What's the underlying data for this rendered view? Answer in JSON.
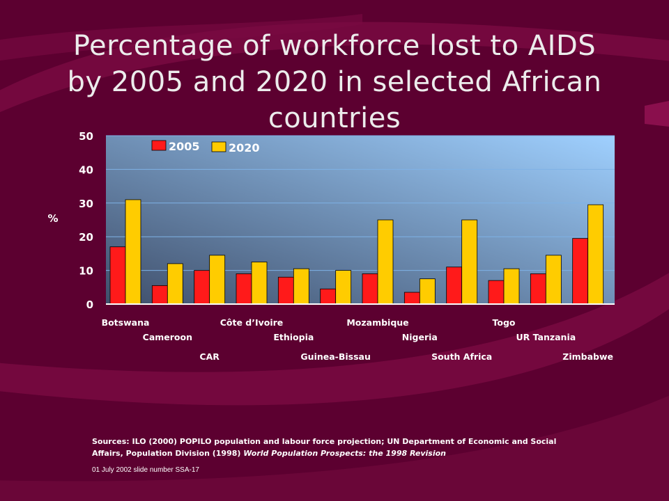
{
  "slide": {
    "title_lines": [
      "Percentage of workforce lost to AIDS",
      "by 2005 and 2020 in selected African",
      "countries"
    ],
    "sources_text": "Sources: ILO (2000) POPILO population and labour force projection; UN Department of Economic and Social Affairs, Population Division (1998) ",
    "sources_italic": "World Population Prospects: the 1998 Revision",
    "footer": "01 July 2002 slide number SSA-17"
  },
  "colors": {
    "background": "#5c0030",
    "swoosh": "#8a0f4d",
    "plot_top": "#9fd0ff",
    "plot_bottom": "#3f4f6b",
    "series_2005": "#ff1a1a",
    "series_2020": "#ffcc00",
    "text": "#ffffff"
  },
  "chart_data": {
    "type": "bar",
    "title": "",
    "xlabel": "",
    "ylabel": "%",
    "ylim": [
      0,
      50
    ],
    "yticks": [
      0,
      10,
      20,
      30,
      40,
      50
    ],
    "grid": true,
    "legend": "top-left",
    "categories": [
      "Botswana",
      "Cameroon",
      "CAR",
      "Côte d’Ivoire",
      "Ethiopia",
      "Guinea-Bissau",
      "Mozambique",
      "Nigeria",
      "South Africa",
      "Togo",
      "UR Tanzania",
      "Zimbabwe"
    ],
    "series": [
      {
        "name": "2005",
        "color": "#ff1a1a",
        "values": [
          17,
          5.5,
          10,
          9,
          8,
          4.5,
          9,
          3.5,
          11,
          7,
          9,
          19.5
        ]
      },
      {
        "name": "2020",
        "color": "#ffcc00",
        "values": [
          31,
          12,
          14.5,
          12.5,
          10.5,
          10,
          25,
          7.5,
          25,
          10.5,
          14.5,
          29.5
        ]
      }
    ]
  }
}
